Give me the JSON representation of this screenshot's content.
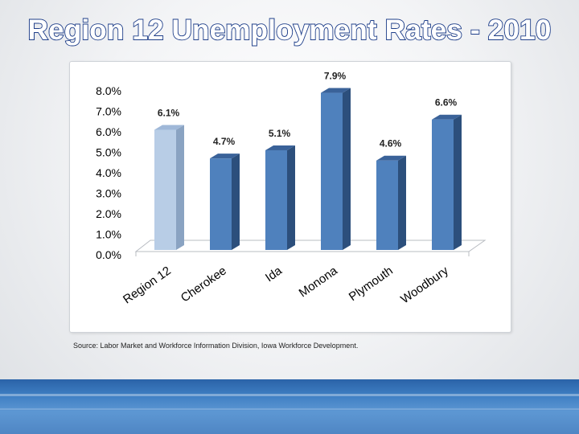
{
  "slide": {
    "title": "Region 12 Unemployment Rates - 2010",
    "source": "Source:  Labor Market and Workforce Information Division, Iowa Workforce Development."
  },
  "chart_data": {
    "type": "bar",
    "title": "",
    "xlabel": "",
    "ylabel": "",
    "categories": [
      "Region 12",
      "Cherokee",
      "Ida",
      "Monona",
      "Plymouth",
      "Woodbury"
    ],
    "values": [
      6.1,
      4.7,
      5.1,
      7.9,
      4.6,
      6.6
    ],
    "data_labels": [
      "6.1%",
      "4.7%",
      "5.1%",
      "7.9%",
      "4.6%",
      "6.6%"
    ],
    "ylim": [
      0,
      8
    ],
    "y_ticks": [
      "0.0%",
      "1.0%",
      "2.0%",
      "3.0%",
      "4.0%",
      "5.0%",
      "6.0%",
      "7.0%",
      "8.0%"
    ],
    "grid": false,
    "legend": "none",
    "style": "3d-column",
    "colors": {
      "highlight": "#b8cde6",
      "bar": "#4f81bd",
      "bar_side": "#2c4f7c",
      "bar_top": "#3a6299"
    }
  }
}
